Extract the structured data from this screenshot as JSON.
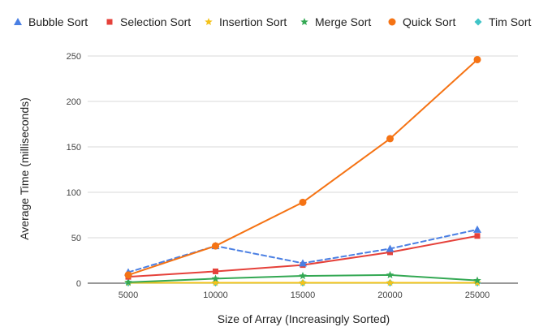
{
  "chart_data": {
    "type": "line",
    "title": "",
    "xlabel": "Size of Array (Increasingly Sorted)",
    "ylabel": "Average Time (milliseconds)",
    "x": [
      5000,
      10000,
      15000,
      20000,
      25000
    ],
    "x_tick_labels": [
      "5000",
      "10000",
      "15000",
      "20000",
      "25000"
    ],
    "ylim": [
      0,
      250
    ],
    "y_ticks": [
      0,
      50,
      100,
      150,
      200,
      250
    ],
    "grid": true,
    "legend_position": "top",
    "series": [
      {
        "name": "Bubble Sort",
        "values": [
          12,
          41,
          22,
          38,
          59
        ],
        "color": "#4a7fe3",
        "marker": "triangle",
        "dashed": true
      },
      {
        "name": "Selection Sort",
        "values": [
          7,
          13,
          20,
          34,
          52
        ],
        "color": "#e5413a",
        "marker": "square",
        "dashed": false
      },
      {
        "name": "Insertion Sort",
        "values": [
          0.5,
          0.5,
          0.5,
          0.5,
          0.5
        ],
        "color": "#f4c21a",
        "marker": "star",
        "dashed": false
      },
      {
        "name": "Merge Sort",
        "values": [
          1,
          5,
          8,
          9,
          3
        ],
        "color": "#33a853",
        "marker": "star",
        "dashed": false
      },
      {
        "name": "Quick Sort",
        "values": [
          9,
          41,
          89,
          159,
          246
        ],
        "color": "#f57314",
        "marker": "circle",
        "dashed": false
      },
      {
        "name": "Tim Sort",
        "values": [
          0.3,
          0.3,
          0.3,
          0.3,
          0.3
        ],
        "color": "#3fc4c7",
        "marker": "diamond",
        "dashed": false
      }
    ]
  }
}
